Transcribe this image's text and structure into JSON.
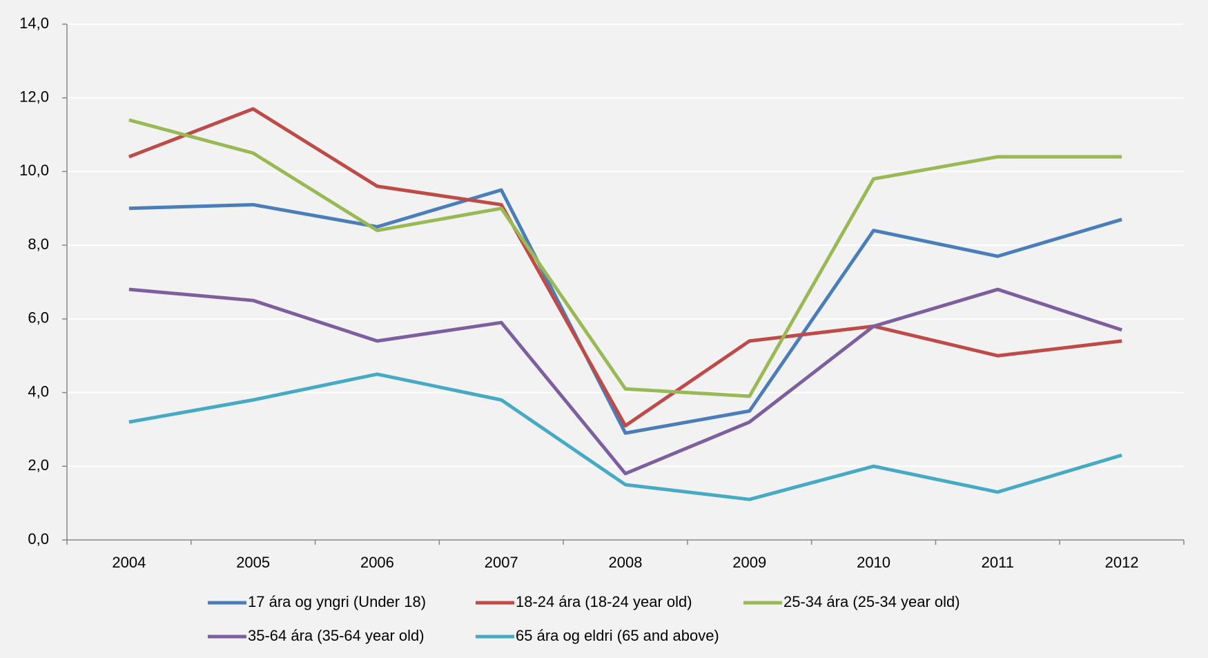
{
  "chart_data": {
    "type": "line",
    "categories": [
      "2004",
      "2005",
      "2006",
      "2007",
      "2008",
      "2009",
      "2010",
      "2011",
      "2012"
    ],
    "series": [
      {
        "name": "17 ára og yngri (Under 18)",
        "color": "#4a7ebb",
        "values": [
          9.0,
          9.1,
          8.5,
          9.5,
          2.9,
          3.5,
          8.4,
          7.7,
          8.7
        ]
      },
      {
        "name": "18-24 ára (18-24 year old)",
        "color": "#be4b48",
        "values": [
          10.4,
          11.7,
          9.6,
          9.1,
          3.1,
          5.4,
          5.8,
          5.0,
          5.4
        ]
      },
      {
        "name": "25-34 ára (25-34 year old)",
        "color": "#98b954",
        "values": [
          11.4,
          10.5,
          8.4,
          9.0,
          4.1,
          3.9,
          9.8,
          10.4,
          10.4
        ]
      },
      {
        "name": "35-64 ára (35-64 year old)",
        "color": "#7d5fa0",
        "values": [
          6.8,
          6.5,
          5.4,
          5.9,
          1.8,
          3.2,
          5.8,
          6.8,
          5.7
        ]
      },
      {
        "name": "65 ára og eldri (65 and above)",
        "color": "#46aac5",
        "values": [
          3.2,
          3.8,
          4.5,
          3.8,
          1.5,
          1.1,
          2.0,
          1.3,
          2.3
        ]
      }
    ],
    "ylim": [
      0,
      14
    ],
    "yticks": [
      {
        "value": 0,
        "label": "0,0"
      },
      {
        "value": 2,
        "label": "2,0"
      },
      {
        "value": 4,
        "label": "4,0"
      },
      {
        "value": 6,
        "label": "6,0"
      },
      {
        "value": 8,
        "label": "8,0"
      },
      {
        "value": 10,
        "label": "10,0"
      },
      {
        "value": 12,
        "label": "12,0"
      },
      {
        "value": 14,
        "label": "14,0"
      }
    ],
    "grid": true,
    "legend": "bottom"
  }
}
